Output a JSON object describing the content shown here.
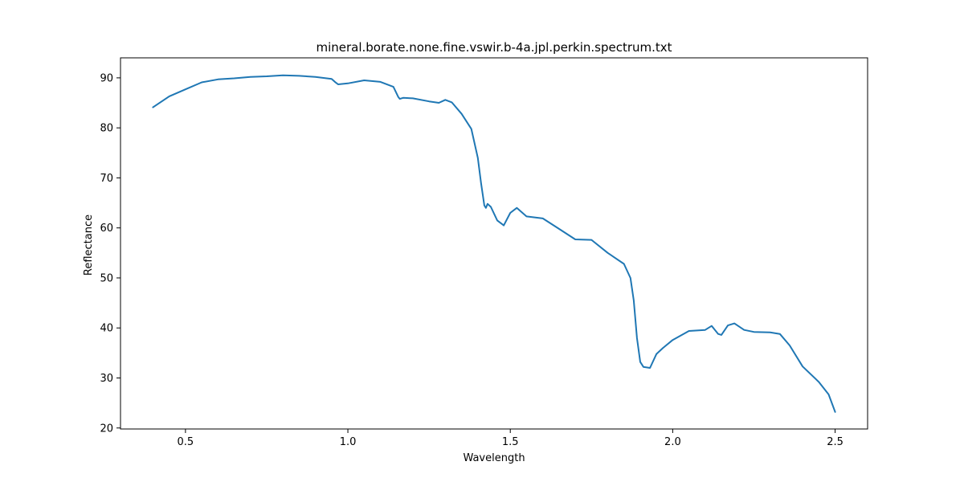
{
  "chart_data": {
    "type": "line",
    "title": "mineral.borate.none.fine.vswir.b-4a.jpl.perkin.spectrum.txt",
    "xlabel": "Wavelength",
    "ylabel": "Reflectance",
    "xlim": [
      0.3,
      2.6
    ],
    "ylim": [
      19.8,
      94.0
    ],
    "xticks": [
      0.5,
      1.0,
      1.5,
      2.0,
      2.5
    ],
    "xtick_labels": [
      "0.5",
      "1.0",
      "1.5",
      "2.0",
      "2.5"
    ],
    "yticks": [
      20,
      30,
      40,
      50,
      60,
      70,
      80,
      90
    ],
    "ytick_labels": [
      "20",
      "30",
      "40",
      "50",
      "60",
      "70",
      "80",
      "90"
    ],
    "grid": false,
    "legend": "none",
    "colors": {
      "line": "#1f77b4",
      "axis": "#000000",
      "background": "#ffffff"
    },
    "series": [
      {
        "x": [
          0.4,
          0.45,
          0.5,
          0.55,
          0.6,
          0.65,
          0.7,
          0.75,
          0.8,
          0.85,
          0.9,
          0.95,
          0.96,
          0.97,
          1.0,
          1.05,
          1.1,
          1.14,
          1.155,
          1.16,
          1.17,
          1.2,
          1.25,
          1.28,
          1.3,
          1.32,
          1.35,
          1.38,
          1.4,
          1.41,
          1.42,
          1.425,
          1.43,
          1.44,
          1.46,
          1.48,
          1.5,
          1.52,
          1.55,
          1.6,
          1.65,
          1.7,
          1.75,
          1.8,
          1.85,
          1.87,
          1.88,
          1.89,
          1.9,
          1.91,
          1.93,
          1.95,
          1.97,
          2.0,
          2.05,
          2.1,
          2.12,
          2.14,
          2.15,
          2.17,
          2.19,
          2.22,
          2.25,
          2.3,
          2.33,
          2.36,
          2.4,
          2.45,
          2.48,
          2.5
        ],
        "y": [
          84.1,
          86.3,
          87.7,
          89.1,
          89.7,
          89.9,
          90.2,
          90.3,
          90.5,
          90.4,
          90.2,
          89.8,
          89.2,
          88.7,
          88.9,
          89.5,
          89.2,
          88.2,
          86.2,
          85.8,
          86.0,
          85.9,
          85.3,
          85.0,
          85.6,
          85.1,
          82.8,
          79.8,
          74.0,
          69.0,
          64.5,
          64.0,
          64.8,
          64.2,
          61.5,
          60.5,
          63.0,
          64.0,
          62.3,
          61.9,
          59.8,
          57.7,
          57.6,
          55.0,
          52.8,
          50.0,
          45.5,
          38.0,
          33.2,
          32.2,
          32.0,
          34.8,
          36.0,
          37.6,
          39.4,
          39.6,
          40.4,
          38.8,
          38.6,
          40.5,
          40.9,
          39.6,
          39.2,
          39.1,
          38.8,
          36.5,
          32.3,
          29.2,
          26.7,
          23.2
        ]
      }
    ]
  }
}
